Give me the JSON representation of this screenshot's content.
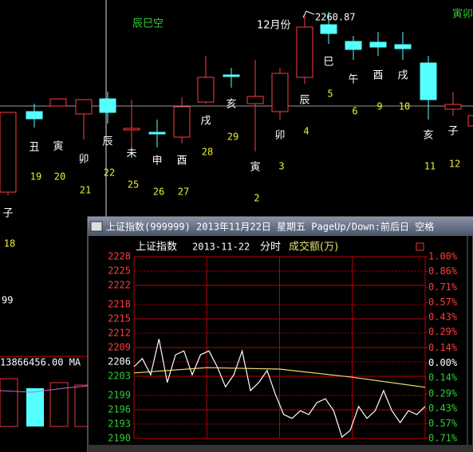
{
  "kline": {
    "notes": {
      "left_label": "辰巳空",
      "month": "12月份",
      "high": "2260.87",
      "right_label": "寅卯"
    },
    "items": [
      {
        "branch": "子",
        "day": 18
      },
      {
        "branch": "丑",
        "day": 19
      },
      {
        "branch": "寅",
        "day": 20
      },
      {
        "branch": "卯",
        "day": 21
      },
      {
        "branch": "辰",
        "day": 22
      },
      {
        "branch": "未",
        "day": 25
      },
      {
        "branch": "申",
        "day": 26
      },
      {
        "branch": "酉",
        "day": 27
      },
      {
        "branch": "戌",
        "day": 28
      },
      {
        "branch": "亥",
        "day": 29
      },
      {
        "branch": "寅",
        "day": 2
      },
      {
        "branch": "卯",
        "day": 3
      },
      {
        "branch": "辰",
        "day": 4
      },
      {
        "branch": "巳",
        "day": 5
      },
      {
        "branch": "午",
        "day": 6
      },
      {
        "branch": "酉",
        "day": 9
      },
      {
        "branch": "戌",
        "day": 10
      },
      {
        "branch": "亥",
        "day": 11
      },
      {
        "branch": "子",
        "day": 12
      }
    ],
    "side_value": "99",
    "volume_label": "13866456.00 MA"
  },
  "popup": {
    "title": "上证指数(999999) 2013年11月22日 星期五 PageUp/Down:前后日 空格",
    "header": {
      "name": "上证指数",
      "date": "2013-11-22",
      "mode": "分时",
      "unit": "成交额(万)"
    },
    "chart_data": {
      "type": "line",
      "ylim": [
        2190,
        2228
      ],
      "yticks": [
        2228,
        2225,
        2222,
        2218,
        2215,
        2212,
        2209,
        2206,
        2203,
        2199,
        2196,
        2193,
        2190
      ],
      "y2lim": [
        -0.71,
        1.0
      ],
      "y2ticks": [
        {
          "value": 1.0,
          "label": "1.00%"
        },
        {
          "value": 0.86,
          "label": "0.86%"
        },
        {
          "value": 0.71,
          "label": "0.71%"
        },
        {
          "value": 0.57,
          "label": "0.57%"
        },
        {
          "value": 0.43,
          "label": "0.43%"
        },
        {
          "value": 0.29,
          "label": "0.29%"
        },
        {
          "value": 0.14,
          "label": "0.14%"
        },
        {
          "value": 0.0,
          "label": "0.00%"
        },
        {
          "value": -0.14,
          "label": "0.14%"
        },
        {
          "value": -0.29,
          "label": "0.29%"
        },
        {
          "value": -0.43,
          "label": "0.43%"
        },
        {
          "value": -0.57,
          "label": "0.57%"
        },
        {
          "value": -0.71,
          "label": "0.71%"
        }
      ],
      "grid": true,
      "series": [
        {
          "color": "#ffffff",
          "values": [
            2205.0,
            2206.7,
            2203.3,
            2210.8,
            2201.7,
            2207.5,
            2208.3,
            2203.3,
            2207.5,
            2208.3,
            2205.0,
            2200.8,
            2203.3,
            2208.3,
            2200.0,
            2201.7,
            2204.2,
            2199.2,
            2195.0,
            2194.2,
            2195.8,
            2195.0,
            2197.5,
            2198.3,
            2195.8,
            2190.3,
            2191.7,
            2196.7,
            2194.2,
            2195.8,
            2200.0,
            2195.8,
            2193.3,
            2195.8,
            2195.0,
            2196.7
          ]
        },
        {
          "color": "#e8e070",
          "values": [
            2203.7,
            2204.8,
            2204.5,
            2202.8,
            2200.7
          ]
        }
      ]
    }
  }
}
